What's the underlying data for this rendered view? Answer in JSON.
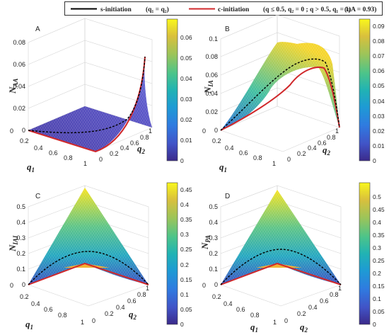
{
  "legend": {
    "s_label": "s-initiation",
    "s_cond": "(q₁ = q₂)",
    "c_label": "c-initiation",
    "c_cond": "(q ≤ 0.5, q₂ = 0 ; q > 0.5, q₁ = 1)",
    "phi": "(φA = 0.93)",
    "s_color": "#000000",
    "c_color": "#d0282b"
  },
  "colormap": [
    "#3b2a8a",
    "#4154c7",
    "#2f7be0",
    "#1e9bd4",
    "#21b3b3",
    "#4dc489",
    "#9bc45a",
    "#d9c03c",
    "#f5d52b",
    "#f9f71c"
  ],
  "panel_A": {
    "label": "A",
    "zlabel": "N",
    "zsub": "AA",
    "xlabel": "q",
    "xsub": "1",
    "ylabel": "q",
    "ysub": "2",
    "ztick_labels": [
      "0",
      "0.02",
      "0.04",
      "0.06",
      "0.08"
    ],
    "xtick_labels": [
      "0",
      "0.2",
      "0.4",
      "0.6",
      "0.8",
      "1"
    ],
    "ytick_labels": [
      "0",
      "0.2",
      "0.4",
      "0.6",
      "0.8",
      "1"
    ],
    "colorbar_ticks": [
      "0",
      "0.01",
      "0.02",
      "0.03",
      "0.04",
      "0.05",
      "0.06"
    ]
  },
  "panel_B": {
    "label": "B",
    "zlabel": "N",
    "zsub": "IA",
    "xlabel": "q",
    "xsub": "1",
    "ylabel": "q",
    "ysub": "2",
    "ztick_labels": [
      "0",
      "0.02",
      "0.04",
      "0.06",
      "0.08",
      "0.1"
    ],
    "xtick_labels": [
      "0",
      "0.2",
      "0.4",
      "0.6",
      "0.8",
      "1"
    ],
    "ytick_labels": [
      "0",
      "0.2",
      "0.4",
      "0.6",
      "0.8",
      "1"
    ],
    "colorbar_ticks": [
      "0",
      "0.01",
      "0.02",
      "0.03",
      "0.04",
      "0.05",
      "0.06",
      "0.07",
      "0.08",
      "0.09"
    ]
  },
  "panel_C": {
    "label": "C",
    "zlabel": "N",
    "zsub": "IAI",
    "xlabel": "q",
    "xsub": "1",
    "ylabel": "q",
    "ysub": "2",
    "ztick_labels": [
      "0",
      "0.1",
      "0.2",
      "0.3",
      "0.4",
      "0.5"
    ],
    "xtick_labels": [
      "0",
      "0.2",
      "0.4",
      "0.6",
      "0.8",
      "1"
    ],
    "ytick_labels": [
      "0",
      "0.2",
      "0.4",
      "0.6",
      "0.8",
      "1"
    ],
    "colorbar_ticks": [
      "0",
      "0.05",
      "0.1",
      "0.15",
      "0.2",
      "0.25",
      "0.3",
      "0.35",
      "0.4",
      "0.45"
    ]
  },
  "panel_D": {
    "label": "D",
    "zlabel": "N",
    "zsub": "PA",
    "xlabel": "q",
    "xsub": "1",
    "ylabel": "q",
    "ysub": "2",
    "ztick_labels": [
      "0",
      "0.1",
      "0.2",
      "0.3",
      "0.4",
      "0.5"
    ],
    "xtick_labels": [
      "0",
      "0.2",
      "0.4",
      "0.6",
      "0.8",
      "1"
    ],
    "ytick_labels": [
      "0",
      "0.2",
      "0.4",
      "0.6",
      "0.8",
      "1"
    ],
    "colorbar_ticks": [
      "0",
      "0.05",
      "0.1",
      "0.15",
      "0.2",
      "0.25",
      "0.3",
      "0.35",
      "0.4",
      "0.45",
      "0.5"
    ]
  },
  "chart_data": [
    {
      "type": "surface",
      "panel": "A",
      "x_axis": "q1",
      "y_axis": "q2",
      "xlim": [
        0,
        1
      ],
      "ylim": [
        0,
        1
      ],
      "zlim": [
        0,
        0.08
      ],
      "surface": "N_AA(q1,q2) ≈ 0.069 · q1^4 · q2^4 (flat near 0, rising to 0.069 at q1=q2=1)",
      "s_initiation_curve": {
        "q": [
          0,
          0.2,
          0.4,
          0.6,
          0.8,
          1
        ],
        "z": [
          0,
          0.0,
          0.002,
          0.009,
          0.028,
          0.069
        ]
      },
      "c_initiation_curve": {
        "q": [
          0,
          0.2,
          0.4,
          0.5,
          0.6,
          0.8,
          1
        ],
        "z": [
          0,
          0,
          0,
          0,
          0.009,
          0.028,
          0.069
        ]
      },
      "colorbar_range": [
        0,
        0.069
      ]
    },
    {
      "type": "surface",
      "panel": "B",
      "x_axis": "q1",
      "y_axis": "q2",
      "xlim": [
        0,
        1
      ],
      "ylim": [
        0,
        1
      ],
      "zlim": [
        0,
        0.1
      ],
      "surface": "N_IA rises from 0 at (0,0) to a ridge max ≈ 0.093 near q≈ 0.75, then drops to 0 at q1=q2=1",
      "s_initiation_curve": {
        "q": [
          0,
          0.2,
          0.4,
          0.6,
          0.75,
          0.9,
          1
        ],
        "z": [
          0,
          0.02,
          0.045,
          0.075,
          0.085,
          0.06,
          0
        ]
      },
      "c_initiation_curve": {
        "q": [
          0,
          0.2,
          0.4,
          0.5,
          0.6,
          0.8,
          0.9,
          1
        ],
        "z": [
          0,
          0.013,
          0.027,
          0.034,
          0.05,
          0.075,
          0.06,
          0
        ]
      },
      "colorbar_range": [
        0,
        0.093
      ]
    },
    {
      "type": "surface",
      "panel": "C",
      "x_axis": "q1",
      "y_axis": "q2",
      "xlim": [
        0,
        1
      ],
      "ylim": [
        0,
        1
      ],
      "zlim": [
        0,
        0.5
      ],
      "surface": "N_IAI pyramid-like: 0 along q1=q2, peak ≈ 0.46 at corner (q1=1, q2=0)",
      "s_initiation_curve": {
        "q": [
          0,
          0.25,
          0.5,
          0.75,
          1
        ],
        "z": [
          0,
          0.09,
          0.12,
          0.09,
          0
        ]
      },
      "c_initiation_curve": {
        "q": [
          0,
          0.25,
          0.5,
          0.75,
          1
        ],
        "z": [
          0,
          0.06,
          0.12,
          0.06,
          0
        ]
      },
      "colorbar_range": [
        0,
        0.46
      ]
    },
    {
      "type": "surface",
      "panel": "D",
      "x_axis": "q1",
      "y_axis": "q2",
      "xlim": [
        0,
        1
      ],
      "ylim": [
        0,
        1
      ],
      "zlim": [
        0,
        0.5
      ],
      "surface": "N_PA pyramid-like: 0 along q1=q2, peak ≈ 0.54 at corner (q1=1, q2=0)",
      "s_initiation_curve": {
        "q": [
          0,
          0.25,
          0.5,
          0.75,
          1
        ],
        "z": [
          0,
          0.1,
          0.13,
          0.1,
          0
        ]
      },
      "c_initiation_curve": {
        "q": [
          0,
          0.25,
          0.5,
          0.75,
          1
        ],
        "z": [
          0,
          0.07,
          0.13,
          0.07,
          0
        ]
      },
      "colorbar_range": [
        0,
        0.54
      ]
    }
  ]
}
